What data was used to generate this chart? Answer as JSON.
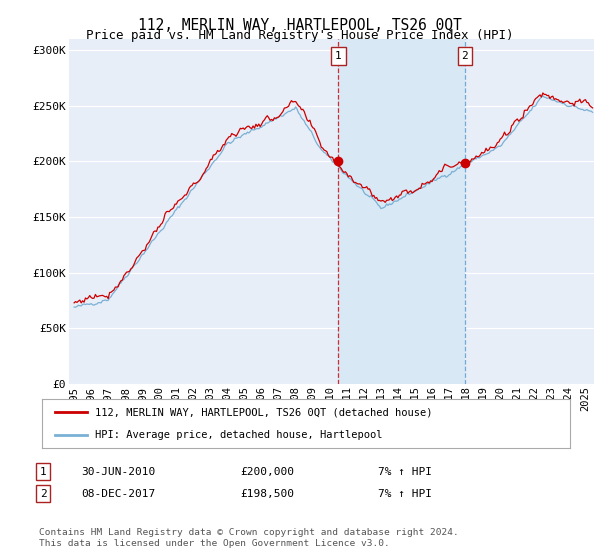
{
  "title": "112, MERLIN WAY, HARTLEPOOL, TS26 0QT",
  "subtitle": "Price paid vs. HM Land Registry's House Price Index (HPI)",
  "ylabel_ticks": [
    "£0",
    "£50K",
    "£100K",
    "£150K",
    "£200K",
    "£250K",
    "£300K"
  ],
  "ytick_values": [
    0,
    50000,
    100000,
    150000,
    200000,
    250000,
    300000
  ],
  "ylim": [
    0,
    310000
  ],
  "xlim_start": 1994.7,
  "xlim_end": 2025.5,
  "red_line_color": "#cc0000",
  "blue_line_color": "#7ab0d4",
  "shade_color": "#d8e8f5",
  "marker1_date": 2010.5,
  "marker1_value": 200000,
  "marker2_date": 2017.92,
  "marker2_value": 198500,
  "vline1_date": 2010.5,
  "vline2_date": 2017.92,
  "legend_red_label": "112, MERLIN WAY, HARTLEPOOL, TS26 0QT (detached house)",
  "legend_blue_label": "HPI: Average price, detached house, Hartlepool",
  "annotation1_num": "1",
  "annotation1_date": "30-JUN-2010",
  "annotation1_price": "£200,000",
  "annotation1_hpi": "7% ↑ HPI",
  "annotation2_num": "2",
  "annotation2_date": "08-DEC-2017",
  "annotation2_price": "£198,500",
  "annotation2_hpi": "7% ↑ HPI",
  "footer": "Contains HM Land Registry data © Crown copyright and database right 2024.\nThis data is licensed under the Open Government Licence v3.0.",
  "background_color": "#ffffff",
  "plot_bg_color": "#e8eef8",
  "grid_color": "#ffffff",
  "title_fontsize": 10.5,
  "subtitle_fontsize": 9,
  "tick_fontsize": 8
}
